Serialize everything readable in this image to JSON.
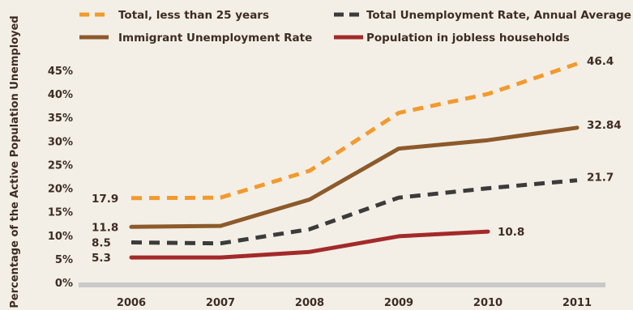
{
  "chart_data": {
    "type": "line",
    "ylabel": "Percentage of the Active Population Unemployed",
    "x": [
      "2006",
      "2007",
      "2008",
      "2009",
      "2010",
      "2011"
    ],
    "yticks": [
      "0%",
      "5%",
      "10%",
      "15%",
      "20%",
      "25%",
      "30%",
      "35%",
      "40%",
      "45%"
    ],
    "ylim": [
      0,
      45
    ],
    "grid": false,
    "legend_position": "top",
    "series": [
      {
        "name": "Total, less than 25 years",
        "values": [
          17.9,
          18.0,
          23.7,
          36.0,
          40.0,
          46.4
        ],
        "color": "#f29a2e",
        "dashed": true,
        "labels": {
          "0": "17.9",
          "5": "46.4"
        }
      },
      {
        "name": "Total Unemployment Rate, Annual Average",
        "values": [
          8.5,
          8.3,
          11.3,
          18.0,
          20.0,
          21.7
        ],
        "color": "#3b3b3b",
        "dashed": true,
        "labels": {
          "0": "8.5",
          "5": "21.7"
        }
      },
      {
        "name": "Immigrant Unemployment Rate",
        "values": [
          11.8,
          12.0,
          17.6,
          28.4,
          30.2,
          32.84
        ],
        "color": "#8c5a2b",
        "dashed": false,
        "labels": {
          "0": "11.8",
          "5": "32.84"
        }
      },
      {
        "name": "Population in jobless households",
        "values": [
          5.3,
          5.3,
          6.5,
          9.8,
          10.8,
          null
        ],
        "color": "#a32a2a",
        "dashed": false,
        "labels": {
          "0": "5.3",
          "4": "10.8"
        }
      }
    ]
  }
}
